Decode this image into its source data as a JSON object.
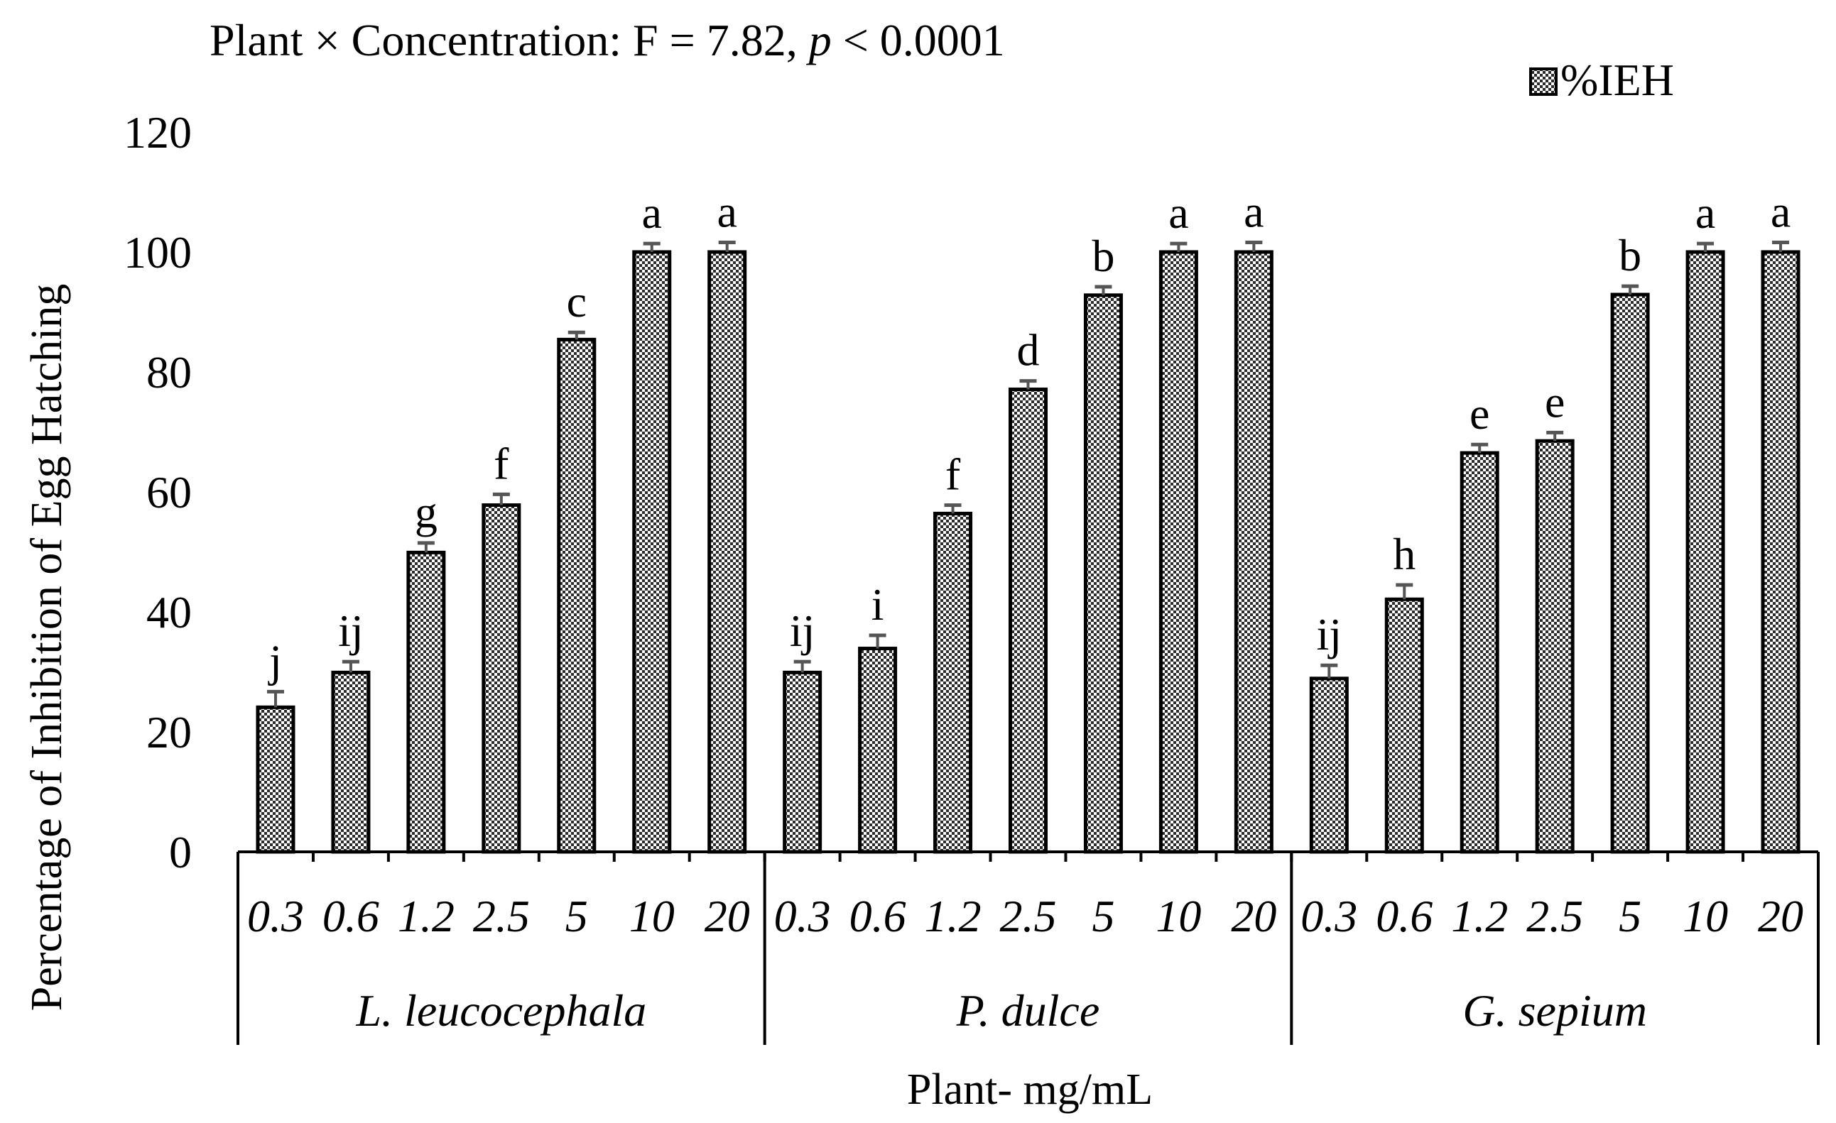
{
  "chart_data": {
    "type": "bar",
    "title_prefix": "Plant × Concentration: F = 7.82, ",
    "title_p": "p",
    "title_suffix": " < 0.0001",
    "legend": "%IEH",
    "xlabel": "Plant- mg/mL",
    "ylabel": "Percentage of Inhibition of Egg Hatching",
    "ylim": [
      0,
      120
    ],
    "yticks": [
      "0",
      "20",
      "40",
      "60",
      "80",
      "100",
      "120"
    ],
    "error_bar_style": "upper caps",
    "groups": [
      {
        "name": "L. leucocephala",
        "categories": [
          "0.3",
          "0.6",
          "1.2",
          "2.5",
          "5",
          "10",
          "20"
        ],
        "values": [
          24.1,
          29.9,
          49.9,
          57.8,
          85.4,
          100,
          100
        ],
        "errors": [
          2.6,
          1.8,
          1.6,
          1.8,
          1.2,
          1.4,
          1.6
        ],
        "letters": [
          "j",
          "ij",
          "g",
          "f",
          "c",
          "a",
          "a"
        ]
      },
      {
        "name": "P. dulce",
        "categories": [
          "0.3",
          "0.6",
          "1.2",
          "2.5",
          "5",
          "10",
          "20"
        ],
        "values": [
          29.9,
          33.9,
          56.4,
          77.1,
          92.8,
          100,
          100
        ],
        "errors": [
          1.8,
          2.2,
          1.4,
          1.4,
          1.4,
          1.4,
          1.6
        ],
        "letters": [
          "ij",
          "i",
          "f",
          "d",
          "b",
          "a",
          "a"
        ]
      },
      {
        "name": "G. sepium",
        "categories": [
          "0.3",
          "0.6",
          "1.2",
          "2.5",
          "5",
          "10",
          "20"
        ],
        "values": [
          28.9,
          42.1,
          66.5,
          68.5,
          92.9,
          100,
          100
        ],
        "errors": [
          2.2,
          2.4,
          1.4,
          1.4,
          1.4,
          1.4,
          1.6
        ],
        "letters": [
          "ij",
          "h",
          "e",
          "e",
          "b",
          "a",
          "a"
        ]
      }
    ]
  }
}
